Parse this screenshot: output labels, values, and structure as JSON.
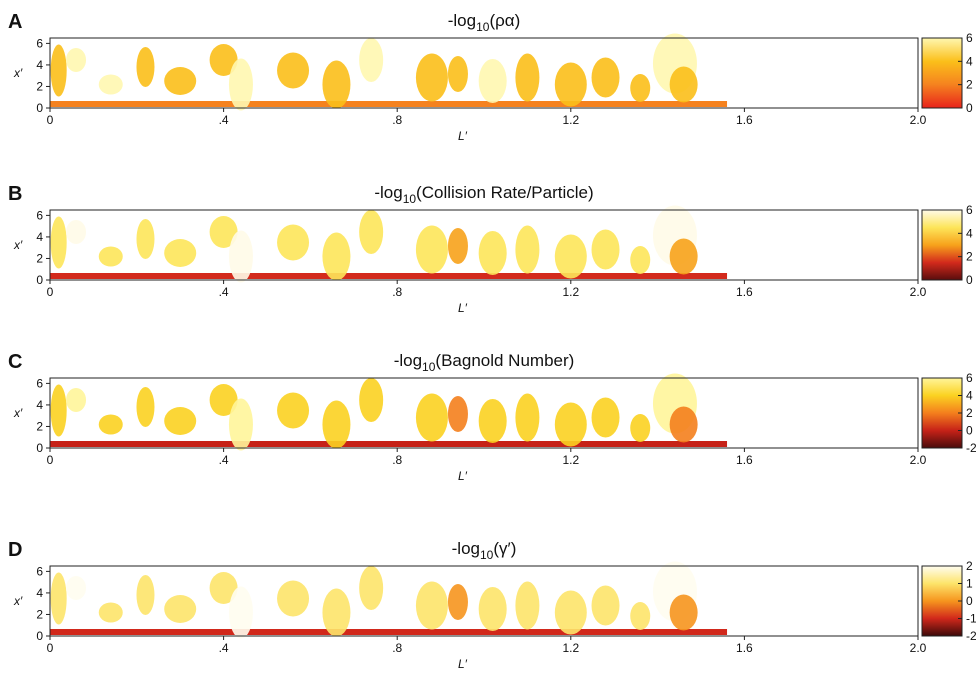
{
  "panels": [
    {
      "label": "A",
      "title": {
        "prefix": "-log",
        "sub": "10",
        "arg": "(ρα)"
      },
      "colorbar": {
        "ticks": [
          0,
          2,
          4,
          6
        ],
        "lim": [
          0,
          6
        ],
        "colors": [
          "#e8231b",
          "#f5821f",
          "#fbbf1a",
          "#fff7b0"
        ]
      }
    },
    {
      "label": "B",
      "title": {
        "prefix": "-log",
        "sub": "10",
        "arg": "(Collision Rate/Particle)"
      },
      "colorbar": {
        "ticks": [
          0,
          2,
          4,
          6
        ],
        "lim": [
          0,
          6
        ],
        "colors": [
          "#5a0d0d",
          "#d32a1c",
          "#f7a21b",
          "#fde55a",
          "#fffbe8"
        ]
      }
    },
    {
      "label": "C",
      "title": {
        "prefix": "-log",
        "sub": "10",
        "arg": "(Bagnold Number)"
      },
      "colorbar": {
        "ticks": [
          -2,
          0,
          2,
          4,
          6
        ],
        "lim": [
          -2,
          6
        ],
        "colors": [
          "#4a0c0c",
          "#c62218",
          "#f47f1d",
          "#fbd221",
          "#fff59a"
        ]
      }
    },
    {
      "label": "D",
      "title": {
        "prefix": "-log",
        "sub": "10",
        "arg": "(γ′)"
      },
      "colorbar": {
        "ticks": [
          -2,
          -1,
          0,
          1,
          2
        ],
        "lim": [
          -2,
          2
        ],
        "colors": [
          "#3d0a0a",
          "#d1281b",
          "#f6951e",
          "#fde46a",
          "#fffdf0"
        ]
      }
    }
  ],
  "axes": {
    "xlabel": "L′",
    "ylabel": "x′",
    "xlim": [
      0,
      2
    ],
    "ylim": [
      0,
      6.5
    ],
    "xticks": [
      0,
      {
        "value": 0.4,
        "label": ".4"
      },
      {
        "value": 0.8,
        "label": ".8"
      },
      1.2,
      1.6,
      {
        "value": 2,
        "label": "2.0"
      }
    ],
    "yticks": [
      0,
      2,
      4,
      6
    ]
  }
}
